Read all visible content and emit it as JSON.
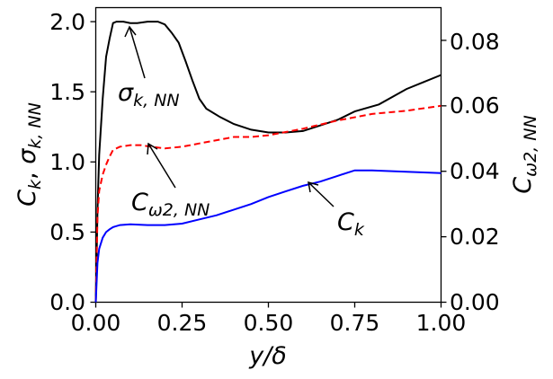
{
  "chart_data": {
    "type": "line",
    "title": "",
    "x_label": {
      "base": "y/δ"
    },
    "left_label": {
      "part1": "C",
      "part1_sub": "k",
      "sep": ", ",
      "part2": "σ",
      "part2_sub": "k, NN"
    },
    "right_label": {
      "base": "C",
      "sub": "ω2, NN"
    },
    "xlim": [
      0,
      1
    ],
    "ylim_left": [
      0,
      2.1
    ],
    "ylim_right": [
      0,
      0.09
    ],
    "x_ticks": [
      "0.00",
      "0.25",
      "0.50",
      "0.75",
      "1.00"
    ],
    "left_ticks": [
      "0.0",
      "0.5",
      "1.0",
      "1.5",
      "2.0"
    ],
    "right_ticks": [
      "0.00",
      "0.02",
      "0.04",
      "0.06",
      "0.08"
    ],
    "grid": false,
    "series": [
      {
        "name": "σk,NN",
        "axis": "left",
        "color": "#000000",
        "dash": "solid",
        "x": [
          0.0,
          0.005,
          0.01,
          0.02,
          0.03,
          0.04,
          0.05,
          0.06,
          0.08,
          0.1,
          0.12,
          0.15,
          0.18,
          0.2,
          0.22,
          0.24,
          0.26,
          0.28,
          0.3,
          0.32,
          0.36,
          0.4,
          0.45,
          0.5,
          0.55,
          0.6,
          0.65,
          0.7,
          0.75,
          0.82,
          0.9,
          0.95,
          1.0
        ],
        "y": [
          0.0,
          0.65,
          1.05,
          1.45,
          1.75,
          1.88,
          1.99,
          2.0,
          2.0,
          1.99,
          1.99,
          2.0,
          2.0,
          1.98,
          1.92,
          1.85,
          1.72,
          1.58,
          1.45,
          1.38,
          1.32,
          1.27,
          1.23,
          1.21,
          1.21,
          1.22,
          1.26,
          1.3,
          1.36,
          1.41,
          1.52,
          1.57,
          1.62
        ]
      },
      {
        "name": "Cω2,NN",
        "axis": "right",
        "color": "#ff0000",
        "dash": "dashed",
        "x": [
          0.0,
          0.005,
          0.01,
          0.02,
          0.03,
          0.04,
          0.05,
          0.07,
          0.1,
          0.13,
          0.16,
          0.2,
          0.25,
          0.3,
          0.35,
          0.4,
          0.45,
          0.5,
          0.55,
          0.6,
          0.7,
          0.8,
          0.9,
          1.0
        ],
        "y": [
          0.0,
          0.026,
          0.034,
          0.039,
          0.042,
          0.0445,
          0.0465,
          0.0475,
          0.048,
          0.048,
          0.0475,
          0.047,
          0.0475,
          0.0485,
          0.0495,
          0.0505,
          0.0505,
          0.051,
          0.052,
          0.053,
          0.0555,
          0.0575,
          0.0585,
          0.06
        ]
      },
      {
        "name": "Ck",
        "axis": "left",
        "color": "#0000ff",
        "dash": "solid",
        "x": [
          0.0,
          0.005,
          0.01,
          0.02,
          0.03,
          0.04,
          0.05,
          0.07,
          0.1,
          0.15,
          0.2,
          0.25,
          0.3,
          0.35,
          0.4,
          0.45,
          0.5,
          0.55,
          0.6,
          0.65,
          0.7,
          0.75,
          0.8,
          0.9,
          1.0
        ],
        "y": [
          0.0,
          0.28,
          0.38,
          0.46,
          0.5,
          0.52,
          0.535,
          0.55,
          0.555,
          0.55,
          0.55,
          0.56,
          0.59,
          0.62,
          0.66,
          0.7,
          0.75,
          0.79,
          0.83,
          0.86,
          0.9,
          0.94,
          0.94,
          0.93,
          0.92
        ]
      }
    ],
    "annotations": [
      {
        "target": "σk,NN",
        "base": "σ",
        "sub": "k, NN",
        "point": [
          0.1,
          2.0
        ]
      },
      {
        "target": "Cω2,NN",
        "base": "C",
        "sub": "ω2, NN",
        "point": [
          0.15,
          1.12
        ]
      },
      {
        "target": "Ck",
        "base": "C",
        "sub": "k",
        "point": [
          0.61,
          0.86
        ]
      }
    ]
  }
}
